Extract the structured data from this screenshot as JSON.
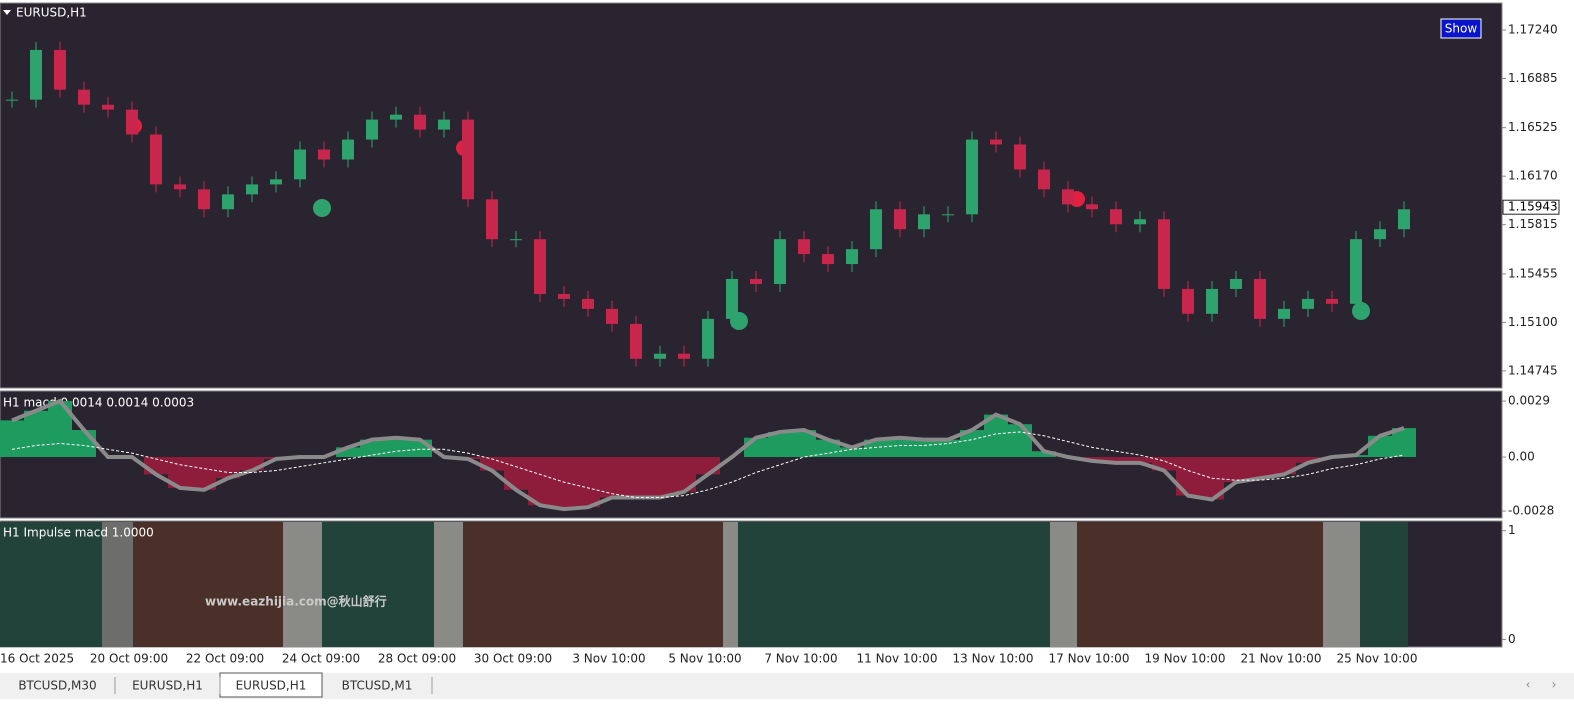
{
  "window": {
    "symbol_title": "EURUSD,H1",
    "show_button": "Show",
    "watermark": "www.eazhijia.com@秋山舒行",
    "tabs": [
      "BTCUSD,M30",
      "EURUSD,H1",
      "EURUSD,H1",
      "BTCUSD,M1"
    ]
  },
  "chart_data": [
    {
      "type": "candlestick",
      "xtick_labels": [
        "16 Oct 2025",
        "20 Oct 09:00",
        "22 Oct 09:00",
        "24 Oct 09:00",
        "28 Oct 09:00",
        "30 Oct 09:00",
        "3 Nov 10:00",
        "5 Nov 10:00",
        "7 Nov 10:00",
        "11 Nov 10:00",
        "13 Nov 10:00",
        "17 Nov 10:00",
        "19 Nov 10:00",
        "21 Nov 10:00",
        "25 Nov 10:00"
      ],
      "values": [
        1.1673,
        1.17094,
        1.16803,
        1.16693,
        1.16657,
        1.16475,
        1.1611,
        1.16074,
        1.15928,
        1.16037,
        1.1611,
        1.16147,
        1.16365,
        1.16292,
        1.16438,
        1.16584,
        1.1662,
        1.16511,
        1.16584,
        1.16001,
        1.15709,
        1.15709,
        1.15308,
        1.15272,
        1.15199,
        1.15089,
        1.14834,
        1.14871,
        1.14834,
        1.15126,
        1.15418,
        1.15381,
        1.15709,
        1.156,
        1.15527,
        1.15636,
        1.15928,
        1.15782,
        1.15891,
        1.15891,
        1.16438,
        1.16402,
        1.16219,
        1.16074,
        1.15964,
        1.15928,
        1.15818,
        1.15855,
        1.15345,
        1.15163,
        1.15345,
        1.15418,
        1.15126,
        1.15199,
        1.15272,
        1.15236,
        1.15709,
        1.15782,
        1.15928
      ],
      "up_color": "#2fa36e",
      "down_color": "#c8264c",
      "ylim": [
        1.1462,
        1.1743
      ],
      "yticks": [
        {
          "value": 1.1724,
          "label": "1.17240"
        },
        {
          "value": 1.16885,
          "label": "1.16885"
        },
        {
          "value": 1.16525,
          "label": "1.16525"
        },
        {
          "value": 1.1617,
          "label": "1.16170"
        },
        {
          "value": 1.15815,
          "label": "1.15815"
        },
        {
          "value": 1.15455,
          "label": "1.15455"
        },
        {
          "value": 1.151,
          "label": "1.15100"
        },
        {
          "value": 1.14745,
          "label": "1.14745"
        }
      ],
      "last_price": 1.15943
    },
    {
      "type": "macd",
      "title": "H1 macd  0.0014 0.0014 0.0003",
      "series": [
        {
          "values": [
            0.0019,
            0.0024,
            0.0029,
            0.0014,
            0,
            0,
            -0.0009,
            -0.0016,
            -0.0017,
            -0.0011,
            -0.0007,
            -0.0001,
            0,
            0,
            0.0005,
            0.0009,
            0.001,
            0.0009,
            0,
            -0.0001,
            -0.0007,
            -0.0017,
            -0.0025,
            -0.0027,
            -0.0026,
            -0.0021,
            -0.0021,
            -0.0021,
            -0.0018,
            -0.0009,
            0,
            0.001,
            0.0013,
            0.0014,
            0.0009,
            0.0005,
            0.0009,
            0.001,
            0.0009,
            0.0009,
            0.0014,
            0.0022,
            0.0017,
            0.0003,
            0,
            -0.0002,
            -0.0003,
            -0.0003,
            -0.0007,
            -0.002,
            -0.0022,
            -0.0013,
            -0.0011,
            -0.0009,
            -0.0003,
            0,
            0.0001,
            0.0011,
            0.0015
          ]
        },
        {
          "values": [
            0.0004,
            0.0006,
            0.0007,
            0.0006,
            0.0004,
            0.0002,
            -0.0001,
            -0.0004,
            -0.0006,
            -0.0008,
            -0.0008,
            -0.0007,
            -0.0005,
            -0.0003,
            -0.0001,
            0.0001,
            0.0003,
            0.0004,
            0.0004,
            0.0002,
            -0.0001,
            -0.0005,
            -0.0009,
            -0.0013,
            -0.0016,
            -0.0019,
            -0.0021,
            -0.0021,
            -0.002,
            -0.0017,
            -0.0013,
            -0.0008,
            -0.0004,
            0,
            0.0002,
            0.0004,
            0.0005,
            0.0006,
            0.0006,
            0.0007,
            0.0009,
            0.0012,
            0.0013,
            0.0011,
            0.0008,
            0.0005,
            0.0003,
            0.0001,
            -0.0002,
            -0.0007,
            -0.0011,
            -0.0012,
            -0.0012,
            -0.0011,
            -0.0009,
            -0.0006,
            -0.0004,
            -0.0001,
            0.0001
          ]
        }
      ],
      "up_color": "#1e9c60",
      "down_color": "#8e1d3c",
      "ylim": [
        -0.00316,
        0.00337
      ],
      "yticks": [
        0.0029,
        {
          "value": 0,
          "label": "0.00"
        },
        -0.0028
      ]
    },
    {
      "type": "impulse",
      "title": "H1 Impulse macd  1.0000",
      "ylim": [
        -0.07,
        1.08
      ],
      "yticks": [
        1,
        0
      ]
    }
  ]
}
